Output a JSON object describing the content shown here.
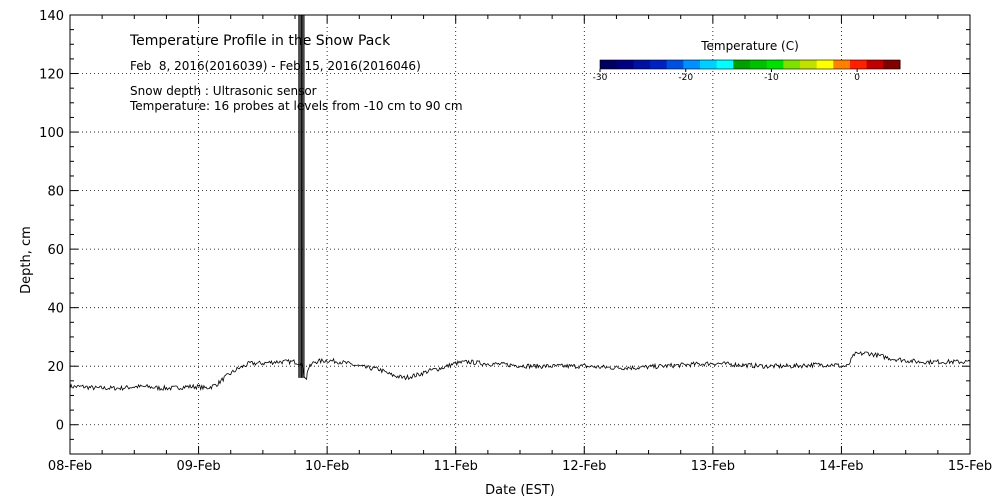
{
  "chart_data": {
    "type": "line",
    "title": "Temperature Profile in the Snow Pack",
    "subtitle": "Feb  8, 2016(2016039) - Feb 15, 2016(2016046)",
    "notes": [
      "Snow depth : Ultrasonic sensor",
      "Temperature: 16 probes at levels from -10 cm to 90 cm"
    ],
    "xlabel": "Date (EST)",
    "ylabel": "Depth, cm",
    "xlim": [
      0,
      7
    ],
    "ylim": [
      -10,
      140
    ],
    "x_tick_values": [
      0,
      1,
      2,
      3,
      4,
      5,
      6,
      7
    ],
    "x_tick_labels": [
      "08-Feb",
      "09-Feb",
      "10-Feb",
      "11-Feb",
      "12-Feb",
      "13-Feb",
      "14-Feb",
      "15-Feb"
    ],
    "y_ticks": [
      0,
      20,
      40,
      60,
      80,
      100,
      120,
      140
    ],
    "grid": true,
    "series": [
      {
        "x": [
          0,
          0.1,
          0.2,
          0.3,
          0.4,
          0.5,
          0.6,
          0.7,
          0.8,
          0.9,
          1.0,
          1.05,
          1.1,
          1.15,
          1.2,
          1.3,
          1.4,
          1.5,
          1.6,
          1.7,
          1.75,
          1.8,
          1.82,
          1.84,
          1.85,
          1.9,
          2.0,
          2.1,
          2.2,
          2.3,
          2.4,
          2.5,
          2.6,
          2.7,
          2.8,
          2.9,
          3.0,
          3.1,
          3.2,
          3.4,
          3.6,
          3.8,
          4.0,
          4.2,
          4.4,
          4.6,
          4.8,
          5.0,
          5.2,
          5.4,
          5.6,
          5.8,
          5.9,
          5.95,
          6.0,
          6.05,
          6.1,
          6.2,
          6.3,
          6.4,
          6.5,
          6.6,
          6.7,
          6.8,
          6.9,
          7.0
        ],
        "y": [
          13,
          13,
          12.5,
          12.5,
          12.5,
          13,
          13,
          12.5,
          12.5,
          13,
          13,
          12.5,
          13,
          14,
          16,
          19,
          21,
          21,
          21.5,
          21.5,
          21.5,
          21,
          17,
          16,
          19,
          21.5,
          22,
          21.5,
          20.5,
          19.5,
          19,
          17,
          16,
          17,
          18.5,
          19.5,
          21,
          21.5,
          21,
          20.5,
          20,
          20,
          20,
          19.5,
          19.5,
          20,
          20.5,
          21,
          20.5,
          20,
          20,
          20.5,
          20.5,
          20.5,
          20,
          20,
          24,
          24.5,
          23.5,
          22.5,
          22,
          21.5,
          21.5,
          21.5,
          21.5,
          21.5
        ]
      }
    ],
    "spike": {
      "x": [
        1.78,
        1.79,
        1.8,
        1.81,
        1.82
      ],
      "y_top": 140,
      "y_bottom": 16
    },
    "colorbar": {
      "title": "Temperature (C)",
      "tick_labels": [
        "-30",
        "-20",
        "-10",
        "0"
      ],
      "tick_values": [
        -30,
        -20,
        -10,
        0
      ],
      "range": [
        -30,
        5
      ],
      "colors": [
        "#000060",
        "#000080",
        "#0010a0",
        "#0020c0",
        "#0050e0",
        "#0090ff",
        "#00d0ff",
        "#00ffff",
        "#00a000",
        "#00c000",
        "#00e000",
        "#80e000",
        "#c0e000",
        "#ffff00",
        "#ff8000",
        "#ff2000",
        "#c00000",
        "#800000"
      ]
    }
  }
}
